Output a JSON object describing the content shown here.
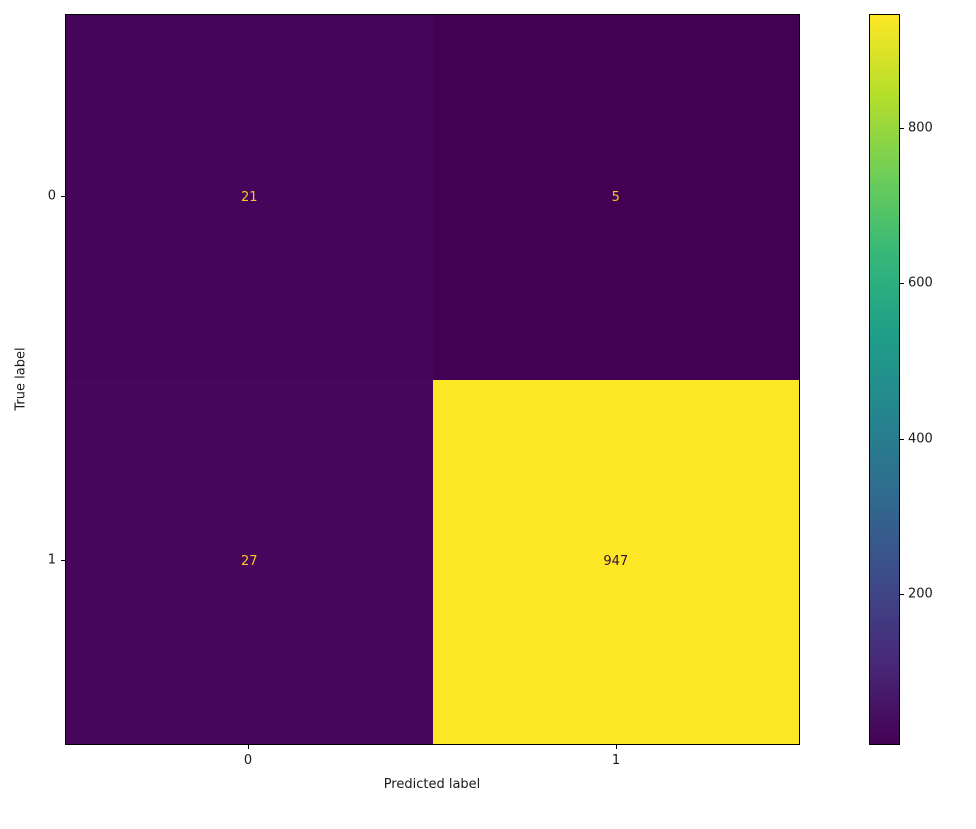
{
  "chart_data": {
    "type": "heatmap",
    "title": "",
    "xlabel": "Predicted label",
    "ylabel": "True label",
    "x_tick_labels": [
      "0",
      "1"
    ],
    "y_tick_labels": [
      "0",
      "1"
    ],
    "matrix": [
      [
        21,
        5
      ],
      [
        27,
        947
      ]
    ],
    "colormap": "viridis",
    "value_range": [
      5,
      947
    ],
    "grid": false,
    "colorbar": {
      "position": "right",
      "tick_labels": {
        "t800": "800",
        "t600": "600",
        "t400": "400",
        "t200": "200"
      },
      "bottom_color": "#440154",
      "top_color": "#fde725"
    }
  },
  "cells": {
    "r0c0": {
      "text": "21",
      "bg": "#45055a",
      "fg": "#f9c622"
    },
    "r0c1": {
      "text": "5",
      "bg": "#440154",
      "fg": "#f9c622"
    },
    "r1c0": {
      "text": "27",
      "bg": "#46075c",
      "fg": "#f9c622"
    },
    "r1c1": {
      "text": "947",
      "bg": "#fde725",
      "fg": "#30123b"
    }
  }
}
